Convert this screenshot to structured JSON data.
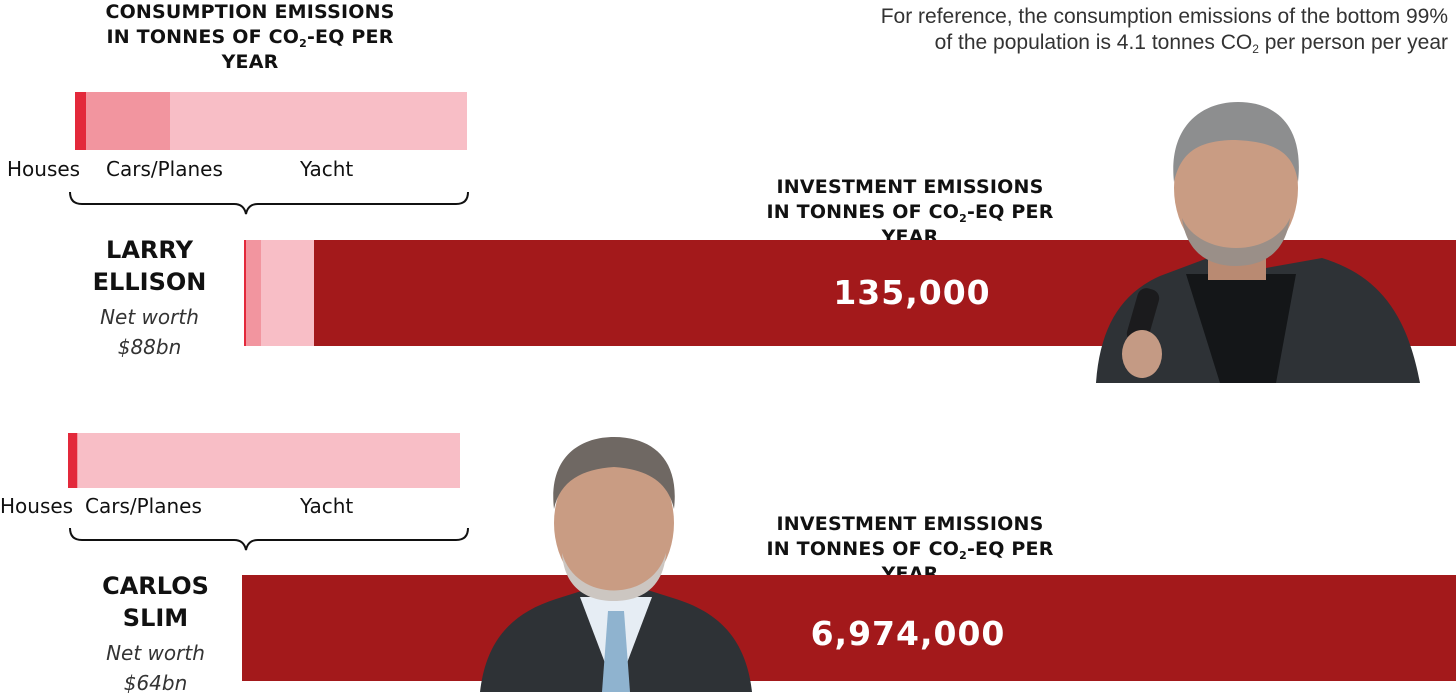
{
  "consumption_header": {
    "line1": "CONSUMPTION EMISSIONS",
    "line2_pre": "IN TONNES OF CO",
    "line2_sub": "2",
    "line2_post": "-EQ PER YEAR"
  },
  "reference_note": {
    "line1": "For reference, the consumption emissions of the bottom 99%",
    "line2_pre": "of the population is 4.1 tonnes CO",
    "line2_sub": "2",
    "line2_post": " per person per year"
  },
  "investment_header": {
    "line1": "INVESTMENT EMISSIONS",
    "line2_pre": "IN TONNES OF CO",
    "line2_sub": "2",
    "line2_post": "-EQ PER YEAR"
  },
  "colors": {
    "houses": "#e3293b",
    "cars_planes": "#f2959f",
    "yacht": "#f8bec6",
    "investment": "#a3191b"
  },
  "chart_data": [
    {
      "type": "bar",
      "person": "LARRY ELLISON",
      "name_line1": "LARRY",
      "name_line2": "ELLISON",
      "net_worth_label": "Net worth",
      "net_worth": "$88bn",
      "consumption": {
        "categories": [
          "Houses",
          "Cars/Planes",
          "Yacht"
        ],
        "shares": [
          0.027,
          0.216,
          0.757
        ]
      },
      "investment": {
        "value": 135000,
        "label": "135,000",
        "consumption_share_of_total_bar": 0.058
      }
    },
    {
      "type": "bar",
      "person": "CARLOS SLIM",
      "name_line1": "CARLOS",
      "name_line2": "SLIM",
      "net_worth_label": "Net worth",
      "net_worth": "$64bn",
      "consumption": {
        "categories": [
          "Houses",
          "Cars/Planes",
          "Yacht"
        ],
        "shares": [
          0.023,
          0.002,
          0.975
        ]
      },
      "investment": {
        "value": 6974000,
        "label": "6,974,000",
        "consumption_share_of_total_bar": 0.0
      }
    }
  ]
}
